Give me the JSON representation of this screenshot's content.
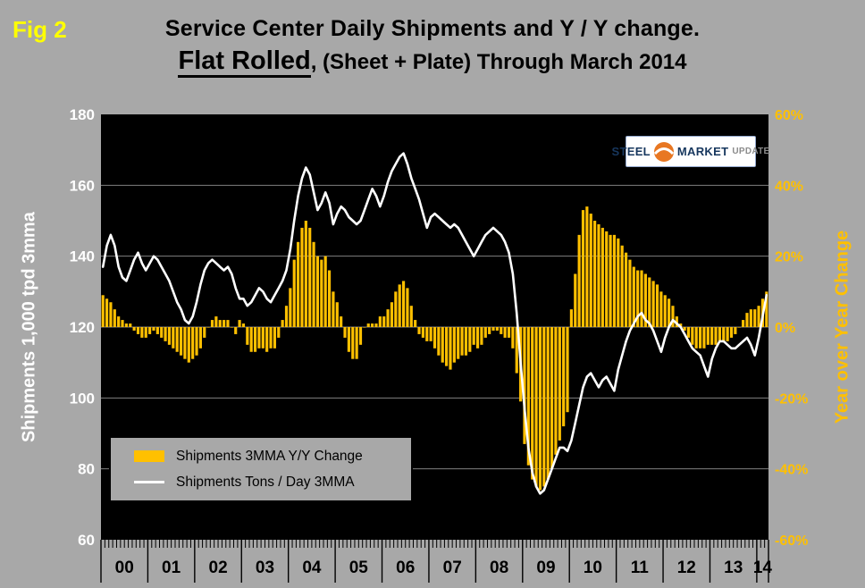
{
  "fig_label": "Fig 2",
  "title": {
    "line1": "Service Center Daily Shipments and Y / Y change.",
    "line2_emphasis": "Flat Rolled",
    "line2_rest": ", (Sheet + Plate) Through March 2014"
  },
  "logo": {
    "steel": "STEEL",
    "market": "MARKET",
    "update": "UPDATE"
  },
  "colors": {
    "background": "#A8A8A8",
    "plot_bg": "#000000",
    "grid": "#808080",
    "bar": "#FFC000",
    "line": "#FFFFFF",
    "fig_label": "#FFFF00",
    "left_axis_text": "#FFFFFF",
    "right_axis_text": "#FFC000",
    "logo_blue": "#17375E",
    "logo_orange": "#E87722"
  },
  "chart_data": {
    "type": "bar+line",
    "title": "Service Center Daily Shipments and Y / Y change. Flat Rolled, (Sheet + Plate) Through March 2014",
    "grid": "horizontal",
    "legend_position": "inside-bottom-left",
    "x": {
      "unit": "month",
      "start": "2000-01",
      "end": "2014-03",
      "year_labels": [
        "00",
        "01",
        "02",
        "03",
        "04",
        "05",
        "06",
        "07",
        "08",
        "09",
        "10",
        "11",
        "12",
        "13",
        "14"
      ]
    },
    "left_axis": {
      "title": "Shipments 1,000 tpd 3mma",
      "min": 60,
      "max": 180,
      "ticks": [
        180,
        160,
        140,
        120,
        100,
        80,
        60
      ]
    },
    "right_axis": {
      "title": "Year over Year Change",
      "min": -60,
      "max": 60,
      "ticks": [
        60,
        40,
        20,
        0,
        -20,
        -40,
        -60
      ],
      "tick_labels": [
        "60%",
        "40%",
        "20%",
        "0%",
        "-20%",
        "-40%",
        "-60%"
      ]
    },
    "series": [
      {
        "name": "Shipments 3MMA Y/Y Change",
        "type": "bar",
        "axis": "right",
        "unit": "%",
        "color": "#FFC000",
        "values": [
          9,
          8,
          7,
          5,
          3,
          2,
          1,
          1,
          -1,
          -2,
          -3,
          -3,
          -2,
          -1,
          -2,
          -3,
          -4,
          -5,
          -6,
          -7,
          -8,
          -9,
          -10,
          -9,
          -8,
          -6,
          -3,
          0,
          2,
          3,
          2,
          2,
          2,
          0,
          -2,
          2,
          1,
          -5,
          -7,
          -7,
          -6,
          -6,
          -7,
          -6,
          -6,
          -3,
          2,
          6,
          11,
          19,
          24,
          28,
          30,
          28,
          24,
          20,
          19,
          20,
          16,
          10,
          7,
          3,
          -3,
          -7,
          -9,
          -9,
          -5,
          0,
          1,
          1,
          1,
          3,
          3,
          5,
          7,
          10,
          12,
          13,
          11,
          6,
          2,
          -2,
          -3,
          -4,
          -4,
          -6,
          -8,
          -10,
          -11,
          -12,
          -10,
          -9,
          -8,
          -8,
          -7,
          -5,
          -6,
          -5,
          -3,
          -2,
          -1,
          -1,
          -2,
          -3,
          -3,
          -6,
          -13,
          -21,
          -33,
          -39,
          -43,
          -45,
          -46,
          -45,
          -43,
          -40,
          -36,
          -32,
          -28,
          -24,
          5,
          15,
          26,
          33,
          34,
          32,
          30,
          29,
          28,
          27,
          26,
          26,
          25,
          23,
          21,
          19,
          17,
          16,
          16,
          15,
          14,
          13,
          12,
          10,
          9,
          8,
          6,
          3,
          1,
          -1,
          -3,
          -5,
          -6,
          -6,
          -6,
          -5,
          -5,
          -5,
          -4,
          -4,
          -4,
          -3,
          -2,
          0,
          2,
          4,
          5,
          5,
          6,
          8,
          10
        ]
      },
      {
        "name": "Shipments Tons / Day 3MMA",
        "type": "line",
        "axis": "left",
        "unit": "1,000 tpd",
        "color": "#FFFFFF",
        "values": [
          137,
          143,
          146,
          143,
          137,
          134,
          133,
          136,
          139,
          141,
          138,
          136,
          138,
          140,
          139,
          137,
          135,
          133,
          130,
          127,
          125,
          122,
          121,
          123,
          127,
          132,
          136,
          138,
          139,
          138,
          137,
          136,
          137,
          135,
          131,
          128,
          128,
          126,
          127,
          129,
          131,
          130,
          128,
          127,
          129,
          131,
          133,
          136,
          142,
          150,
          157,
          162,
          165,
          163,
          158,
          153,
          155,
          158,
          155,
          149,
          152,
          154,
          153,
          151,
          150,
          149,
          150,
          153,
          156,
          159,
          157,
          154,
          157,
          161,
          164,
          166,
          168,
          169,
          166,
          162,
          159,
          156,
          152,
          148,
          151,
          152,
          151,
          150,
          149,
          148,
          149,
          148,
          146,
          144,
          142,
          140,
          142,
          144,
          146,
          147,
          148,
          147,
          146,
          144,
          141,
          135,
          124,
          110,
          97,
          86,
          79,
          75,
          73,
          74,
          77,
          80,
          83,
          86,
          86,
          85,
          88,
          93,
          98,
          103,
          106,
          107,
          105,
          103,
          105,
          106,
          104,
          102,
          108,
          112,
          116,
          119,
          121,
          123,
          124,
          122,
          121,
          119,
          116,
          113,
          117,
          120,
          122,
          121,
          120,
          118,
          116,
          114,
          113,
          112,
          109,
          106,
          111,
          114,
          116,
          116,
          115,
          114,
          114,
          115,
          116,
          117,
          115,
          112,
          117,
          123,
          129
        ]
      }
    ]
  }
}
